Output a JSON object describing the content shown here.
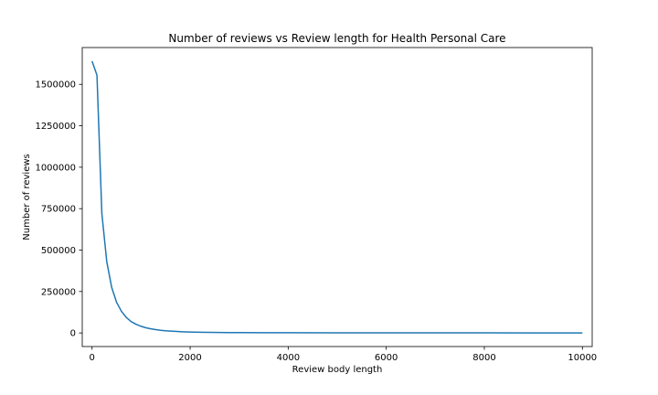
{
  "chart_data": {
    "type": "line",
    "title": "Number of reviews vs Review length for Health Personal Care",
    "xlabel": "Review body length",
    "ylabel": "Number of reviews",
    "xlim": [
      -200,
      10200
    ],
    "ylim": [
      -82000,
      1722000
    ],
    "xticks": [
      0,
      2000,
      4000,
      6000,
      8000,
      10000
    ],
    "yticks": [
      0,
      250000,
      500000,
      750000,
      1000000,
      1250000,
      1500000
    ],
    "grid": false,
    "series": [
      {
        "color": "#1f77b4",
        "x": [
          0,
          100,
          200,
          300,
          400,
          500,
          600,
          700,
          800,
          900,
          1000,
          1100,
          1200,
          1300,
          1400,
          1500,
          1600,
          1700,
          1800,
          1900,
          2000,
          2200,
          2400,
          2600,
          2800,
          3000,
          3500,
          4000,
          5000,
          6000,
          7000,
          8000,
          9000,
          10000
        ],
        "y": [
          1640000,
          1555000,
          720000,
          430000,
          275000,
          185000,
          130000,
          93000,
          68000,
          52000,
          40000,
          31000,
          25000,
          20000,
          16000,
          13000,
          11000,
          9500,
          8000,
          6500,
          5500,
          4300,
          3400,
          2800,
          2300,
          2000,
          1500,
          1200,
          900,
          700,
          500,
          400,
          300,
          250
        ]
      }
    ]
  }
}
